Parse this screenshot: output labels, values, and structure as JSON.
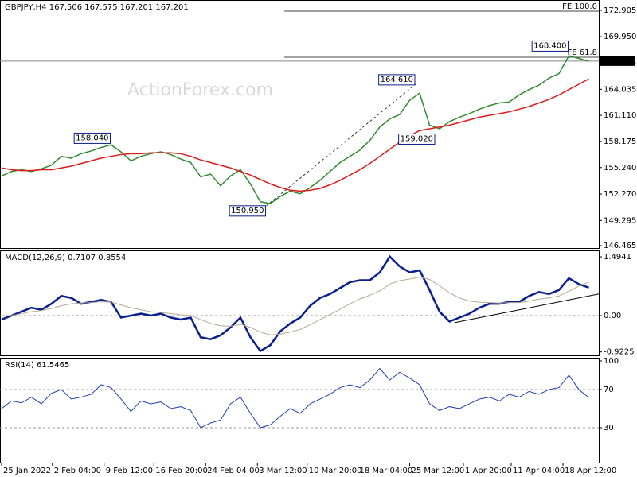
{
  "chart_data": [
    {
      "type": "line",
      "title": "GBPJPY,H4  167.506 167.575 167.201 167.201",
      "watermark": "ActionForex.com",
      "ylim": [
        146.2,
        174.066
      ],
      "yticks": [
        172.905,
        {
          "value": 169.95,
          "label": "169.950"
        },
        164.035,
        {
          "value": 161.11,
          "label": "161.110"
        },
        158.175,
        {
          "value": 155.24,
          "label": "155.240"
        },
        {
          "value": 152.27,
          "label": "152.270"
        },
        149.295,
        146.465
      ],
      "series": [
        {
          "color": "#2e8b2e",
          "values": [
            154.3,
            154.8,
            155.0,
            154.8,
            155.1,
            155.5,
            156.5,
            156.3,
            156.8,
            157.1,
            157.5,
            157.8,
            157.0,
            156.0,
            156.5,
            156.8,
            157.0,
            156.7,
            156.2,
            155.8,
            154.2,
            154.5,
            153.2,
            154.3,
            155.0,
            153.4,
            151.4,
            151.2,
            152.0,
            152.6,
            152.3,
            153.0,
            153.8,
            154.8,
            155.8,
            156.5,
            157.2,
            158.3,
            159.8,
            160.7,
            161.2,
            162.8,
            163.6,
            160.0,
            159.6,
            160.4,
            160.9,
            161.3,
            161.8,
            162.2,
            162.5,
            162.6,
            163.4,
            164.0,
            164.5,
            165.3,
            165.8,
            167.8,
            167.5,
            167.2
          ]
        },
        {
          "color": "#e0191a",
          "values": [
            155.2,
            155.0,
            154.9,
            154.9,
            155.0,
            155.0,
            155.2,
            155.4,
            155.7,
            156.0,
            156.3,
            156.5,
            156.7,
            156.8,
            156.8,
            156.9,
            156.9,
            156.9,
            156.8,
            156.5,
            156.1,
            155.8,
            155.5,
            155.2,
            154.8,
            154.4,
            153.9,
            153.4,
            153.0,
            152.7,
            152.6,
            152.7,
            152.9,
            153.3,
            153.8,
            154.4,
            155.0,
            155.7,
            156.5,
            157.3,
            158.1,
            158.8,
            159.4,
            159.6,
            159.8,
            160.0,
            160.3,
            160.6,
            160.9,
            161.1,
            161.3,
            161.5,
            161.8,
            162.1,
            162.5,
            162.9,
            163.4,
            164.0,
            164.6,
            165.2
          ]
        }
      ],
      "price_labels": [
        {
          "value": 158.04,
          "label": "158.040",
          "x": 11
        },
        {
          "value": 150.95,
          "label": "150.950",
          "x": 26.6
        },
        {
          "value": 164.61,
          "label": "164.610",
          "x": 41.6
        },
        {
          "value": 159.02,
          "label": "159.020",
          "x": 43.6
        },
        {
          "value": 168.4,
          "label": "168.400",
          "x": 57
        }
      ],
      "fe_start": 28.4,
      "fe_levels": [
        {
          "value": 172.82,
          "label": "FE 100.0"
        },
        {
          "value": 167.64,
          "label": "FE 61.8"
        }
      ],
      "last": {
        "value": 167.201,
        "label": "167.201"
      }
    },
    {
      "type": "line",
      "title": "MACD(12,26,9) 0.7107 0.8554",
      "ylim": [
        -1.01,
        1.657
      ],
      "yticks": [
        1.4941,
        {
          "value": 0,
          "label": "0.00"
        },
        -0.9225
      ],
      "levels": [
        0
      ],
      "series": [
        {
          "color": "#0a1f8f",
          "width": 2.5,
          "values": [
            -0.1,
            0.0,
            0.1,
            0.2,
            0.15,
            0.3,
            0.5,
            0.45,
            0.3,
            0.35,
            0.4,
            0.35,
            -0.05,
            0.0,
            0.05,
            0.0,
            0.05,
            -0.05,
            -0.1,
            -0.05,
            -0.55,
            -0.6,
            -0.5,
            -0.3,
            -0.05,
            -0.55,
            -0.9,
            -0.75,
            -0.4,
            -0.2,
            -0.05,
            0.25,
            0.45,
            0.55,
            0.7,
            0.85,
            0.9,
            0.9,
            1.1,
            1.5,
            1.25,
            1.1,
            1.15,
            0.65,
            0.1,
            -0.15,
            -0.05,
            0.05,
            0.2,
            0.3,
            0.3,
            0.35,
            0.35,
            0.5,
            0.6,
            0.55,
            0.65,
            0.95,
            0.8,
            0.7107
          ]
        },
        {
          "color": "#b8a890",
          "width": 1,
          "values": [
            0,
            0,
            0.05,
            0.1,
            0.13,
            0.18,
            0.25,
            0.3,
            0.32,
            0.33,
            0.35,
            0.35,
            0.27,
            0.2,
            0.15,
            0.1,
            0.08,
            0.05,
            0.02,
            0,
            -0.1,
            -0.2,
            -0.26,
            -0.27,
            -0.22,
            -0.3,
            -0.42,
            -0.49,
            -0.47,
            -0.42,
            -0.35,
            -0.23,
            -0.1,
            0.03,
            0.16,
            0.3,
            0.42,
            0.52,
            0.63,
            0.8,
            0.89,
            0.93,
            0.98,
            0.92,
            0.76,
            0.58,
            0.45,
            0.37,
            0.34,
            0.33,
            0.32,
            0.33,
            0.33,
            0.37,
            0.42,
            0.45,
            0.5,
            0.62,
            0.75,
            0.8554
          ]
        }
      ],
      "trendline": {
        "x": [
          45.5,
          60
        ],
        "values": [
          -0.18,
          0.55
        ]
      }
    },
    {
      "type": "line",
      "title": "RSI(14) 61.5465",
      "ylim": [
        -6.67,
        103.3
      ],
      "yticks": [
        100,
        70,
        30
      ],
      "levels": [
        70,
        30
      ],
      "xlim": [
        -0.16,
        60
      ],
      "xticks": [
        {
          "value": 0,
          "label": "25 Jan 2022"
        },
        {
          "value": 5.1,
          "label": "2 Feb 04:00"
        },
        {
          "value": 10.3,
          "label": "9 Feb 12:00"
        },
        {
          "value": 15.3,
          "label": "16 Feb 20:00"
        },
        {
          "value": 20.5,
          "label": "24 Feb 04:00"
        },
        {
          "value": 25.7,
          "label": "3 Mar 12:00"
        },
        {
          "value": 30.7,
          "label": "10 Mar 20:00"
        },
        {
          "value": 35.8,
          "label": "18 Mar 04:00"
        },
        {
          "value": 41,
          "label": "25 Mar 12:00"
        },
        {
          "value": 46.4,
          "label": "1 Apr 20:00"
        },
        {
          "value": 51.2,
          "label": "11 Apr 04:00"
        },
        {
          "value": 56.4,
          "label": "18 Apr 12:00"
        }
      ],
      "series": [
        {
          "color": "#1f3fb0",
          "width": 1,
          "values": [
            50,
            58,
            56,
            62,
            55,
            66,
            70,
            60,
            62,
            65,
            75,
            72,
            60,
            47,
            58,
            55,
            57,
            50,
            52,
            48,
            30,
            35,
            38,
            55,
            62,
            45,
            30,
            33,
            42,
            50,
            45,
            55,
            60,
            65,
            72,
            75,
            72,
            80,
            92,
            80,
            88,
            82,
            75,
            55,
            48,
            52,
            50,
            55,
            60,
            62,
            58,
            65,
            62,
            68,
            65,
            70,
            72,
            85,
            70,
            61.5465
          ]
        }
      ]
    }
  ]
}
